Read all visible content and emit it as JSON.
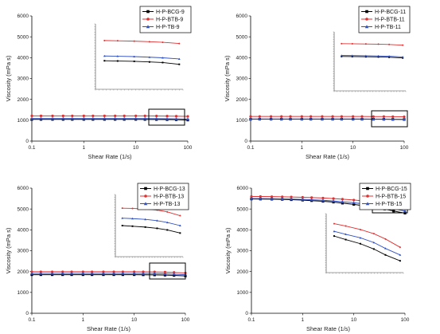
{
  "chart_data": [
    {
      "type": "line",
      "xlabel": "Shear Rate (1/s)",
      "ylabel": "Viscosity (mPa s)",
      "xscale": "log",
      "xlim": [
        0.1,
        100
      ],
      "ylim": [
        0,
        6000
      ],
      "xticks": [
        "0.1",
        "1",
        "10",
        "100"
      ],
      "yticks": [
        "0",
        "1000",
        "2000",
        "3000",
        "4000",
        "5000",
        "6000"
      ],
      "legend_position": "top-right",
      "x": [
        0.1,
        0.15,
        0.25,
        0.4,
        0.6,
        1,
        1.5,
        2.5,
        4,
        6,
        10,
        15,
        25,
        40,
        60,
        100
      ],
      "series": [
        {
          "name": "H-P-BCG-9",
          "color": "#000000",
          "marker": "square",
          "values": [
            1040,
            1040,
            1040,
            1040,
            1040,
            1040,
            1040,
            1040,
            1040,
            1040,
            1040,
            1038,
            1035,
            1030,
            1025,
            1010
          ]
        },
        {
          "name": "H-P-BTB-9",
          "color": "#e03030",
          "marker": "circle",
          "values": [
            1210,
            1210,
            1210,
            1210,
            1210,
            1210,
            1210,
            1210,
            1210,
            1210,
            1210,
            1208,
            1205,
            1200,
            1195,
            1185
          ]
        },
        {
          "name": "H-P-TB-9",
          "color": "#3050c0",
          "marker": "triangle",
          "values": [
            1080,
            1080,
            1080,
            1080,
            1080,
            1080,
            1080,
            1080,
            1080,
            1080,
            1080,
            1078,
            1075,
            1070,
            1065,
            1055
          ]
        }
      ],
      "inset_series": [
        {
          "name": "H-P-BCG-9",
          "values": [
            1040,
            1038,
            1035,
            1030,
            1025,
            1010
          ]
        },
        {
          "name": "H-P-BTB-9",
          "values": [
            1210,
            1208,
            1205,
            1200,
            1195,
            1185
          ]
        },
        {
          "name": "H-P-TB-9",
          "values": [
            1080,
            1078,
            1075,
            1070,
            1065,
            1055
          ]
        }
      ]
    },
    {
      "type": "line",
      "xlabel": "Shear Rate (1/s)",
      "ylabel": "Viscosity (mPa s)",
      "xscale": "log",
      "xlim": [
        0.1,
        100
      ],
      "ylim": [
        0,
        6000
      ],
      "xticks": [
        "0.1",
        "1",
        "10",
        "100"
      ],
      "yticks": [
        "0",
        "1000",
        "2000",
        "3000",
        "4000",
        "5000",
        "6000"
      ],
      "legend_position": "top-right",
      "x": [
        0.1,
        0.15,
        0.25,
        0.4,
        0.6,
        1,
        1.5,
        2.5,
        4,
        6,
        10,
        15,
        25,
        40,
        60,
        100
      ],
      "series": [
        {
          "name": "H-P-BCG-11",
          "color": "#000000",
          "marker": "square",
          "values": [
            1050,
            1050,
            1050,
            1050,
            1050,
            1050,
            1050,
            1050,
            1050,
            1050,
            1050,
            1049,
            1047,
            1045,
            1042,
            1035
          ]
        },
        {
          "name": "H-P-BTB-11",
          "color": "#e03030",
          "marker": "circle",
          "values": [
            1180,
            1180,
            1180,
            1180,
            1180,
            1180,
            1180,
            1180,
            1180,
            1180,
            1180,
            1179,
            1177,
            1175,
            1172,
            1165
          ]
        },
        {
          "name": "H-P-TB-11",
          "color": "#3050c0",
          "marker": "triangle",
          "values": [
            1060,
            1060,
            1060,
            1060,
            1060,
            1060,
            1060,
            1060,
            1060,
            1060,
            1060,
            1059,
            1057,
            1055,
            1052,
            1045
          ]
        }
      ],
      "inset_series": [
        {
          "name": "H-P-BCG-11",
          "values": [
            1050,
            1049,
            1047,
            1045,
            1042,
            1035
          ]
        },
        {
          "name": "H-P-BTB-11",
          "values": [
            1180,
            1179,
            1177,
            1175,
            1172,
            1165
          ]
        },
        {
          "name": "H-P-TB-11",
          "values": [
            1060,
            1059,
            1057,
            1055,
            1052,
            1045
          ]
        }
      ]
    },
    {
      "type": "line",
      "xlabel": "Shear Rate (1/s)",
      "ylabel": "Viscosity (mPa s)",
      "xscale": "log",
      "xlim": [
        0.1,
        100
      ],
      "ylim": [
        0,
        6000
      ],
      "xticks": [
        "0.1",
        "1",
        "10",
        "100"
      ],
      "yticks": [
        "0",
        "1000",
        "2000",
        "3000",
        "4000",
        "5000",
        "6000"
      ],
      "legend_position": "top-right",
      "x": [
        0.1,
        0.15,
        0.25,
        0.4,
        0.6,
        1,
        1.5,
        2.5,
        4,
        6,
        10,
        15,
        25,
        40,
        60,
        100
      ],
      "series": [
        {
          "name": "H-P-BCG-13",
          "color": "#000000",
          "marker": "square",
          "values": [
            1850,
            1850,
            1850,
            1850,
            1850,
            1850,
            1850,
            1850,
            1850,
            1850,
            1850,
            1845,
            1838,
            1828,
            1815,
            1790
          ]
        },
        {
          "name": "H-P-BTB-13",
          "color": "#e03030",
          "marker": "circle",
          "values": [
            1990,
            1990,
            1990,
            1990,
            1990,
            1990,
            1990,
            1990,
            1990,
            1990,
            1990,
            1988,
            1983,
            1975,
            1960,
            1930
          ]
        },
        {
          "name": "H-P-TB-13",
          "color": "#3050c0",
          "marker": "triangle",
          "values": [
            1910,
            1910,
            1910,
            1910,
            1910,
            1910,
            1910,
            1910,
            1910,
            1910,
            1910,
            1906,
            1900,
            1890,
            1875,
            1850
          ]
        }
      ],
      "inset_series": [
        {
          "name": "H-P-BCG-13",
          "values": [
            1850,
            1845,
            1838,
            1828,
            1815,
            1790
          ]
        },
        {
          "name": "H-P-BTB-13",
          "values": [
            1990,
            1988,
            1983,
            1975,
            1960,
            1930
          ]
        },
        {
          "name": "H-P-TB-13",
          "values": [
            1910,
            1906,
            1900,
            1890,
            1875,
            1850
          ]
        }
      ]
    },
    {
      "type": "line",
      "xlabel": "Shear Rate (1/s)",
      "ylabel": "Viscosity (mPa s)",
      "xscale": "log",
      "xlim": [
        0.1,
        100
      ],
      "ylim": [
        0,
        6000
      ],
      "xticks": [
        "0.1",
        "1",
        "10",
        "100"
      ],
      "yticks": [
        "0",
        "1000",
        "2000",
        "3000",
        "4000",
        "5000",
        "6000"
      ],
      "legend_position": "top-right",
      "x": [
        0.1,
        0.15,
        0.25,
        0.4,
        0.6,
        1,
        1.5,
        2.5,
        4,
        6,
        10,
        15,
        25,
        40,
        60,
        100
      ],
      "series": [
        {
          "name": "H-P-BCG-15",
          "color": "#000000",
          "marker": "square",
          "values": [
            5480,
            5475,
            5470,
            5460,
            5445,
            5425,
            5400,
            5370,
            5330,
            5280,
            5220,
            5160,
            5090,
            5000,
            4900,
            4800
          ]
        },
        {
          "name": "H-P-BTB-15",
          "color": "#e03030",
          "marker": "circle",
          "values": [
            5600,
            5598,
            5592,
            5585,
            5575,
            5560,
            5545,
            5525,
            5500,
            5470,
            5430,
            5390,
            5330,
            5260,
            5170,
            5030
          ]
        },
        {
          "name": "H-P-TB-15",
          "color": "#3050c0",
          "marker": "triangle",
          "values": [
            5500,
            5497,
            5492,
            5485,
            5475,
            5460,
            5440,
            5415,
            5385,
            5345,
            5300,
            5250,
            5190,
            5110,
            5010,
            4900
          ]
        }
      ],
      "inset_series": [
        {
          "name": "H-P-BCG-15",
          "values": [
            5220,
            5160,
            5090,
            5000,
            4900,
            4800
          ]
        },
        {
          "name": "H-P-BTB-15",
          "values": [
            5430,
            5390,
            5330,
            5260,
            5170,
            5030
          ]
        },
        {
          "name": "H-P-TB-15",
          "values": [
            5300,
            5250,
            5190,
            5110,
            5010,
            4900
          ]
        }
      ]
    }
  ]
}
